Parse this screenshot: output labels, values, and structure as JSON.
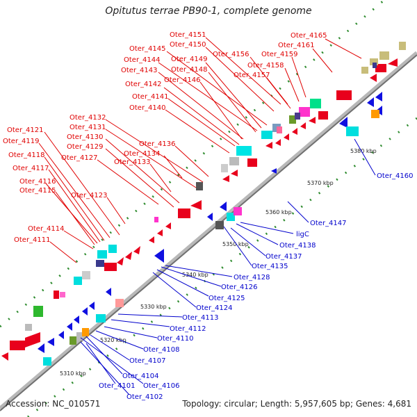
{
  "title": "Opitutus terrae PB90-1, complete genome",
  "accession_text": "Accession: NC_010571",
  "summary_text": "Topology: circular; Length: 5,957,605 bp; Genes: 4,681",
  "colors": {
    "backbone": "#a0a0a0",
    "red_label": "#e00000",
    "blue_label": "#0000cc",
    "tick": "#2e8b2e"
  },
  "kbp_labels": [
    "5310 kbp",
    "5320 kbp",
    "5330 kbp",
    "5340 kbp",
    "5350 kbp",
    "5360 kbp",
    "5370 kbp",
    "5380 kbp"
  ],
  "top_labels": [
    "Oter_4165",
    "Oter_4161",
    "Oter_4151",
    "Oter_4150",
    "Oter_4156",
    "Oter_4159",
    "Oter_4145",
    "Oter_4149",
    "Oter_4158",
    "Oter_4144",
    "Oter_4148",
    "Oter_4157",
    "Oter_4143",
    "Oter_4142",
    "Oter_4146",
    "Oter_4141",
    "Oter_4140",
    "Oter_4132",
    "Oter_4131",
    "Oter_4130",
    "Oter_4129",
    "Oter_4136",
    "Oter_4134",
    "Oter_4121",
    "Oter_4127",
    "Oter_4133",
    "Oter_4119",
    "Oter_4118",
    "Oter_4117",
    "Oter_4116",
    "Oter_4115",
    "Oter_4123",
    "Oter_4114",
    "Oter_4111"
  ],
  "bottom_labels": [
    "Oter_4160",
    "Oter_4147",
    "ligC",
    "Oter_4138",
    "Oter_4137",
    "Oter_4135",
    "Oter_4128",
    "Oter_4126",
    "Oter_4125",
    "Oter_4124",
    "Oter_4113",
    "Oter_4112",
    "Oter_4110",
    "Oter_4108",
    "Oter_4107",
    "Oter_4104",
    "Oter_4106",
    "Oter_4101",
    "Oter_4102"
  ]
}
